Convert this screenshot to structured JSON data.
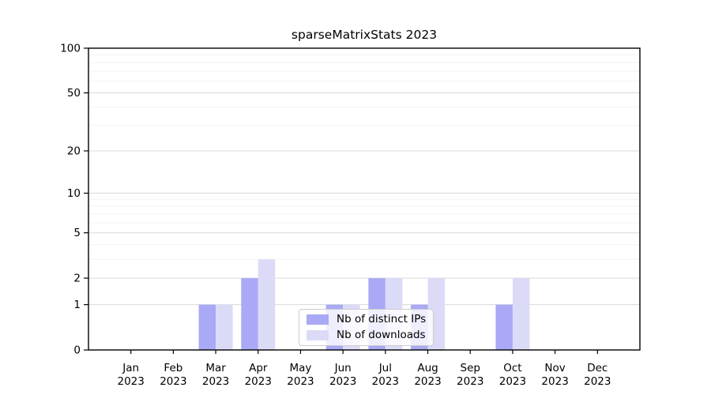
{
  "title": "sparseMatrixStats 2023",
  "legend": {
    "items": [
      {
        "label": "Nb of distinct IPs",
        "color": "#a9a9f5"
      },
      {
        "label": "Nb of downloads",
        "color": "#dbdbf8"
      }
    ]
  },
  "chart_data": {
    "type": "bar",
    "title": "sparseMatrixStats 2023",
    "categories": [
      "Jan",
      "Feb",
      "Mar",
      "Apr",
      "May",
      "Jun",
      "Jul",
      "Aug",
      "Sep",
      "Oct",
      "Nov",
      "Dec"
    ],
    "year_label": "2023",
    "series": [
      {
        "name": "Nb of distinct IPs",
        "color": "#a9a9f5",
        "values": [
          0,
          0,
          1,
          2,
          0,
          1,
          2,
          1,
          0,
          1,
          0,
          0
        ]
      },
      {
        "name": "Nb of downloads",
        "color": "#dbdbf8",
        "values": [
          0,
          0,
          1,
          3,
          0,
          1,
          2,
          2,
          0,
          2,
          0,
          0
        ]
      }
    ],
    "xlabel": "",
    "ylabel": "",
    "yscale": "log1p",
    "ylim": [
      0,
      100
    ],
    "y_major_ticks": [
      0,
      1,
      2,
      5,
      10,
      20,
      50,
      100
    ],
    "y_minor_gridlines": [
      3,
      4,
      6,
      7,
      8,
      9,
      30,
      40,
      60,
      70,
      80,
      90
    ],
    "grid": "horizontal",
    "legend_position": "inside-bottom-center",
    "colors": {
      "major_grid": "#d9d9d9",
      "minor_grid": "#f2f2f2",
      "axis": "#000000",
      "text": "#000000"
    }
  }
}
